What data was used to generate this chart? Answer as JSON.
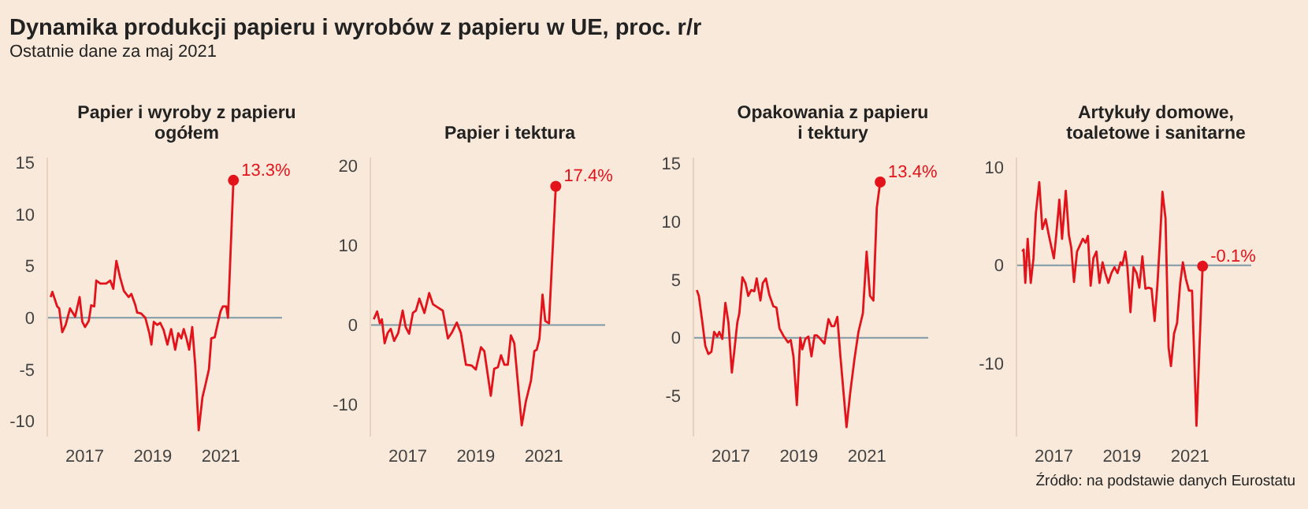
{
  "chart_data": [
    {
      "type": "line",
      "title": "Papier i wyroby z papieru\nogółem",
      "annotations": [
        "Dynamika produkcji papieru i wyrobów z papieru w UE, proc. r/r",
        "Ostatnie dane za maj 2021",
        {
          "text": "13.3%",
          "x": 2021.37,
          "y": 13.3
        }
      ],
      "xlim": [
        2015.9,
        2022.8
      ],
      "xticks": [
        2017,
        2019,
        2021
      ],
      "ylim": [
        -11.5,
        15.5
      ],
      "yticks": [
        -10,
        -5,
        0,
        5,
        10,
        15
      ],
      "ref_lines": [
        {
          "axis": "y",
          "value": 0,
          "color": "#7d99a6"
        }
      ],
      "grid": false,
      "legend": false,
      "marker": "none",
      "line_style": "solid",
      "series": [
        {
          "color": "#e3131b",
          "x": [
            2016.0,
            2016.05,
            2016.19,
            2016.25,
            2016.34,
            2016.44,
            2016.57,
            2016.72,
            2016.85,
            2016.93,
            2017.01,
            2017.12,
            2017.19,
            2017.28,
            2017.34,
            2017.46,
            2017.63,
            2017.75,
            2017.84,
            2017.93,
            2018.04,
            2018.15,
            2018.29,
            2018.37,
            2018.49,
            2018.54,
            2018.66,
            2018.78,
            2018.9,
            2018.96,
            2019.03,
            2019.13,
            2019.22,
            2019.32,
            2019.43,
            2019.54,
            2019.66,
            2019.75,
            2019.84,
            2019.91,
            2019.99,
            2020.07,
            2020.16,
            2020.25,
            2020.35,
            2020.46,
            2020.54,
            2020.65,
            2020.72,
            2020.82,
            2020.9,
            2020.99,
            2021.06,
            2021.16,
            2021.21,
            2021.37
          ],
          "values": [
            2.0,
            2.5,
            1.1,
            0.9,
            -1.4,
            -0.7,
            0.9,
            0.1,
            2.0,
            -0.4,
            -0.9,
            -0.3,
            1.2,
            1.1,
            3.6,
            3.3,
            3.3,
            3.6,
            2.8,
            5.5,
            3.9,
            2.6,
            2.0,
            2.3,
            1.2,
            0.5,
            0.4,
            0,
            -1.5,
            -2.6,
            -0.4,
            -0.7,
            -0.5,
            -1.2,
            -2.6,
            -1.1,
            -3.1,
            -1.5,
            -2.0,
            -1.1,
            -2.0,
            -3.1,
            -0.9,
            -4.7,
            -10.9,
            -7.7,
            -6.6,
            -5.0,
            -2.0,
            -1.9,
            -0.7,
            0.6,
            1.1,
            1.1,
            0,
            13.3
          ]
        }
      ]
    },
    {
      "type": "line",
      "title": "Papier i tektura",
      "annotations": [
        {
          "text": "17.4%",
          "x": 2021.35,
          "y": 17.4
        }
      ],
      "xlim": [
        2015.9,
        2022.8
      ],
      "xticks": [
        2017,
        2019,
        2021
      ],
      "ylim": [
        -14,
        21
      ],
      "yticks": [
        -10,
        0,
        10,
        20
      ],
      "ref_lines": [
        {
          "axis": "y",
          "value": 0,
          "color": "#7d99a6"
        }
      ],
      "grid": false,
      "legend": false,
      "marker": "none",
      "line_style": "solid",
      "series": [
        {
          "color": "#e3131b",
          "x": [
            2016.0,
            2016.1,
            2016.18,
            2016.24,
            2016.32,
            2016.41,
            2016.5,
            2016.6,
            2016.72,
            2016.85,
            2016.94,
            2017.04,
            2017.15,
            2017.24,
            2017.34,
            2017.49,
            2017.63,
            2017.74,
            2017.88,
            2018.03,
            2018.18,
            2018.29,
            2018.44,
            2018.56,
            2018.71,
            2018.88,
            2019.0,
            2019.15,
            2019.25,
            2019.44,
            2019.54,
            2019.65,
            2019.74,
            2019.84,
            2019.94,
            2020.03,
            2020.13,
            2020.35,
            2020.47,
            2020.62,
            2020.72,
            2020.79,
            2020.87,
            2020.96,
            2021.04,
            2021.15,
            2021.35
          ],
          "values": [
            0.7,
            1.7,
            0.2,
            0.7,
            -2.3,
            -1.0,
            -0.5,
            -2.0,
            -1.0,
            1.8,
            -0.3,
            -1.1,
            1.5,
            1.8,
            3.3,
            1.5,
            4.0,
            2.6,
            2.2,
            1.8,
            -1.7,
            -1.0,
            0.3,
            -1.0,
            -5.0,
            -5.1,
            -5.6,
            -2.8,
            -3.3,
            -8.9,
            -5.5,
            -5.3,
            -3.8,
            -5.0,
            -5.0,
            -1.3,
            -2.3,
            -12.6,
            -9.6,
            -7.0,
            -3.3,
            -3.1,
            -1.7,
            3.8,
            0.5,
            0.2,
            17.4
          ]
        }
      ]
    },
    {
      "type": "line",
      "title": "Opakowania z papieru\ni tektury",
      "annotations": [
        {
          "text": "13.4%",
          "x": 2021.39,
          "y": 13.4
        }
      ],
      "xlim": [
        2015.9,
        2022.8
      ],
      "xticks": [
        2017,
        2019,
        2021
      ],
      "ylim": [
        -8.5,
        15.5
      ],
      "yticks": [
        -5,
        0,
        5,
        10,
        15
      ],
      "ref_lines": [
        {
          "axis": "y",
          "value": 0,
          "color": "#7d99a6"
        }
      ],
      "grid": false,
      "legend": false,
      "marker": "none",
      "line_style": "solid",
      "series": [
        {
          "color": "#e3131b",
          "x": [
            2016.0,
            2016.06,
            2016.16,
            2016.25,
            2016.34,
            2016.43,
            2016.51,
            2016.6,
            2016.66,
            2016.75,
            2016.84,
            2016.93,
            2017.03,
            2017.1,
            2017.19,
            2017.25,
            2017.34,
            2017.43,
            2017.51,
            2017.6,
            2017.69,
            2017.76,
            2017.87,
            2017.94,
            2018.03,
            2018.13,
            2018.25,
            2018.34,
            2018.43,
            2018.54,
            2018.68,
            2018.76,
            2018.84,
            2018.94,
            2019.04,
            2019.1,
            2019.19,
            2019.28,
            2019.37,
            2019.46,
            2019.53,
            2019.63,
            2019.75,
            2019.87,
            2019.96,
            2020.04,
            2020.13,
            2020.22,
            2020.4,
            2020.51,
            2020.63,
            2020.75,
            2020.88,
            2020.99,
            2021.09,
            2021.19,
            2021.29,
            2021.39
          ],
          "values": [
            4.1,
            3.6,
            1.4,
            -0.7,
            -1.4,
            -1.2,
            0.5,
            0.1,
            0.5,
            -0.1,
            3.0,
            1.3,
            -3.0,
            -1.2,
            1.3,
            2.1,
            5.2,
            4.7,
            3.6,
            4.1,
            4.0,
            5.1,
            3.2,
            4.7,
            5.1,
            3.7,
            2.7,
            2.6,
            0.8,
            0.2,
            -0.4,
            -0.2,
            -1.6,
            -5.8,
            0,
            -1.0,
            -0.1,
            0.1,
            -1.6,
            0.2,
            0.2,
            -0.1,
            -0.5,
            1.6,
            1.0,
            1.0,
            1.8,
            -1.6,
            -7.7,
            -4.7,
            -1.9,
            0.5,
            2.1,
            7.4,
            3.6,
            3.2,
            11.2,
            13.4
          ]
        }
      ]
    },
    {
      "type": "line",
      "title": "Artykuły domowe,\ntoaletowe i sanitarne",
      "annotations": [
        {
          "text": "-0.1%",
          "x": 2021.37,
          "y": -0.1
        },
        "Źródło: na podstawie danych Eurostatu"
      ],
      "xlim": [
        2015.9,
        2022.8
      ],
      "xticks": [
        2017,
        2019,
        2021
      ],
      "ylim": [
        -17.5,
        11
      ],
      "yticks": [
        -10,
        0,
        10
      ],
      "ref_lines": [
        {
          "axis": "y",
          "value": 0,
          "color": "#7d99a6"
        }
      ],
      "grid": false,
      "legend": false,
      "marker": "none",
      "line_style": "solid",
      "series": [
        {
          "color": "#e3131b",
          "x": [
            2016.07,
            2016.11,
            2016.16,
            2016.23,
            2016.32,
            2016.4,
            2016.47,
            2016.57,
            2016.66,
            2016.76,
            2016.85,
            2016.93,
            2017.0,
            2017.07,
            2017.16,
            2017.24,
            2017.35,
            2017.44,
            2017.51,
            2017.59,
            2017.68,
            2017.76,
            2017.85,
            2017.93,
            2018.0,
            2018.08,
            2018.16,
            2018.25,
            2018.34,
            2018.43,
            2018.51,
            2018.6,
            2018.69,
            2018.78,
            2018.87,
            2018.96,
            2019.01,
            2019.1,
            2019.16,
            2019.25,
            2019.34,
            2019.43,
            2019.51,
            2019.6,
            2019.69,
            2019.78,
            2019.87,
            2019.96,
            2020.04,
            2020.12,
            2020.19,
            2020.28,
            2020.37,
            2020.44,
            2020.53,
            2020.62,
            2020.71,
            2020.79,
            2020.88,
            2020.97,
            2021.06,
            2021.19,
            2021.37
          ],
          "values": [
            1.4,
            1.6,
            -1.8,
            2.7,
            -1.8,
            0.7,
            5.3,
            8.5,
            3.7,
            4.7,
            3.1,
            1.8,
            0.7,
            3.1,
            6.7,
            2.7,
            7.6,
            3.1,
            1.8,
            -1.7,
            1.4,
            2.0,
            2.7,
            2.3,
            3.0,
            -2.1,
            0.7,
            1.4,
            -1.8,
            0.3,
            -0.8,
            -1.8,
            -0.8,
            -0.2,
            -0.8,
            0.3,
            0,
            1.4,
            -0.2,
            -4.8,
            -0.2,
            -0.8,
            -2.3,
            0.9,
            -2.4,
            -2.3,
            -2.4,
            -5.7,
            -2.1,
            2.7,
            7.5,
            4.8,
            -8.4,
            -10.3,
            -7.0,
            -5.9,
            -1.9,
            0.3,
            -1.4,
            -2.6,
            -2.6,
            -16.4,
            -0.1
          ]
        }
      ]
    }
  ]
}
